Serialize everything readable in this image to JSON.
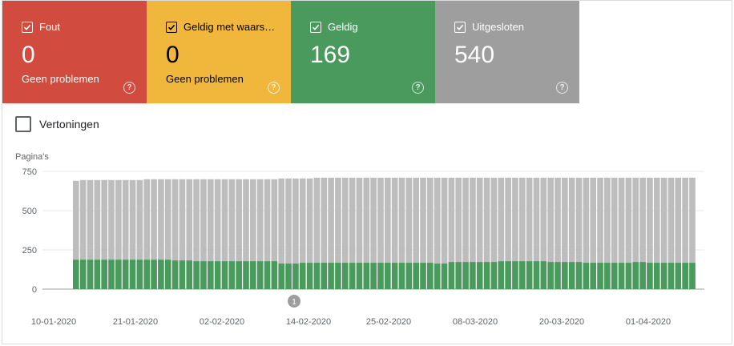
{
  "tiles": [
    {
      "key": "error",
      "label": "Fout",
      "value": "0",
      "sub": "Geen problemen",
      "color": "#d14c3e"
    },
    {
      "key": "warning",
      "label": "Geldig met waars…",
      "value": "0",
      "sub": "Geen problemen",
      "color": "#f0b73c"
    },
    {
      "key": "valid",
      "label": "Geldig",
      "value": "169",
      "sub": "",
      "color": "#4a9a5e"
    },
    {
      "key": "excluded",
      "label": "Uitgesloten",
      "value": "540",
      "sub": "",
      "color": "#9e9e9e"
    }
  ],
  "impressions_label": "Vertoningen",
  "chart_data": {
    "type": "bar",
    "stacked": true,
    "ylabel": "Pagina's",
    "ylim": [
      0,
      750
    ],
    "yticks": [
      0,
      250,
      500,
      750
    ],
    "xtick_labels": [
      "10-01-2020",
      "21-01-2020",
      "02-02-2020",
      "14-02-2020",
      "25-02-2020",
      "08-03-2020",
      "20-03-2020",
      "01-04-2020"
    ],
    "annotation": "1",
    "series": [
      {
        "name": "Geldig",
        "color": "#4a9a5e",
        "values": [
          188,
          188,
          188,
          188,
          188,
          188,
          188,
          188,
          188,
          188,
          188,
          188,
          188,
          188,
          183,
          183,
          183,
          178,
          178,
          178,
          178,
          178,
          178,
          178,
          178,
          178,
          178,
          178,
          178,
          163,
          163,
          163,
          168,
          168,
          168,
          168,
          168,
          168,
          168,
          168,
          168,
          168,
          168,
          168,
          168,
          168,
          168,
          168,
          168,
          168,
          168,
          163,
          163,
          173,
          173,
          173,
          173,
          173,
          173,
          173,
          178,
          178,
          178,
          178,
          178,
          178,
          178,
          173,
          173,
          173,
          173,
          173,
          168,
          168,
          168,
          168,
          168,
          168,
          168,
          173,
          173,
          168,
          168,
          168,
          168,
          168,
          168,
          168
        ]
      },
      {
        "name": "Uitgesloten",
        "color": "#bdbdbd",
        "values": [
          502,
          507,
          507,
          507,
          507,
          507,
          507,
          507,
          507,
          507,
          512,
          512,
          512,
          512,
          517,
          517,
          517,
          522,
          522,
          522,
          522,
          522,
          522,
          522,
          522,
          522,
          522,
          522,
          522,
          542,
          542,
          542,
          537,
          537,
          542,
          542,
          542,
          542,
          542,
          542,
          542,
          542,
          542,
          542,
          542,
          542,
          542,
          542,
          542,
          542,
          542,
          547,
          547,
          537,
          537,
          537,
          537,
          537,
          537,
          537,
          532,
          532,
          532,
          532,
          532,
          532,
          532,
          537,
          537,
          537,
          537,
          537,
          542,
          542,
          542,
          542,
          542,
          542,
          542,
          537,
          537,
          542,
          542,
          542,
          542,
          542,
          542,
          542
        ]
      }
    ]
  }
}
